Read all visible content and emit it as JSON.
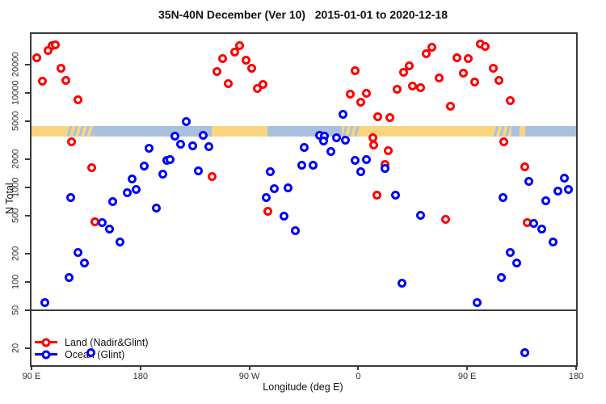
{
  "title": "35N-40N December (Ver 10)   2015-01-01 to 2020-12-18",
  "legend": {
    "land_label": "Land (Nadir&Glint)",
    "ocean_label": "Ocean (Glint)"
  },
  "colors": {
    "land_series": "#ff0000",
    "ocean_series": "#0000ff",
    "band_land": "#fbd57e",
    "band_ocean": "#a9c1df",
    "axis": "#3a3a3a"
  },
  "chart_data": {
    "type": "scatter",
    "title": "35N-40N December (Ver 10)   2015-01-01 to 2020-12-18",
    "xlabel": "Longitude (deg E)",
    "ylabel": "N Total",
    "grid": false,
    "legend_position": "bottom-left-inside",
    "x_axis": {
      "min": 90,
      "max": 540,
      "note": "longitude wraps: 90E..180..90W..0..90E..180",
      "ticks": [
        {
          "lon": 90,
          "label": "90 E"
        },
        {
          "lon": 180,
          "label": "180"
        },
        {
          "lon": 270,
          "label": "90 W"
        },
        {
          "lon": 360,
          "label": "0"
        },
        {
          "lon": 450,
          "label": "90 E"
        },
        {
          "lon": 540,
          "label": "180"
        }
      ]
    },
    "y_axis": {
      "scale": "log",
      "min": 13,
      "max": 42000,
      "ticks": [
        20,
        50,
        100,
        200,
        500,
        1000,
        2000,
        5000,
        10000,
        20000
      ]
    },
    "reference_line_n": 50,
    "surface_band": {
      "top_n": 4480,
      "bottom_n": 3470,
      "segments": [
        {
          "from": 90,
          "to": 118.6,
          "type": "land"
        },
        {
          "from": 118.6,
          "to": 141.3,
          "type": "coast"
        },
        {
          "from": 141.3,
          "to": 239.1,
          "type": "ocean"
        },
        {
          "from": 239.1,
          "to": 285.1,
          "type": "land"
        },
        {
          "from": 285.1,
          "to": 346.3,
          "type": "ocean"
        },
        {
          "from": 346.3,
          "to": 361.6,
          "type": "coast"
        },
        {
          "from": 361.6,
          "to": 471.4,
          "type": "land"
        },
        {
          "from": 471.4,
          "to": 486.7,
          "type": "coast"
        },
        {
          "from": 486.7,
          "to": 493.4,
          "type": "ocean"
        },
        {
          "from": 493.4,
          "to": 498.0,
          "type": "land"
        },
        {
          "from": 498.0,
          "to": 540,
          "type": "ocean"
        }
      ]
    },
    "series": [
      {
        "name": "Land (Nadir&Glint)",
        "color": "#ff0000",
        "points": [
          [
            94.5,
            23700
          ],
          [
            104,
            28500
          ],
          [
            107.3,
            31500
          ],
          [
            110,
            32200
          ],
          [
            114.4,
            18200
          ],
          [
            98.9,
            13400
          ],
          [
            118.2,
            13600
          ],
          [
            128.2,
            8460
          ],
          [
            122.8,
            3070
          ],
          [
            139.9,
            1640
          ],
          [
            142.1,
            434
          ],
          [
            239.3,
            1320
          ],
          [
            247.6,
            23300
          ],
          [
            257.6,
            27100
          ],
          [
            262,
            31500
          ],
          [
            267.5,
            22200
          ],
          [
            271.9,
            18200
          ],
          [
            243.1,
            16900
          ],
          [
            252.4,
            12600
          ],
          [
            276.4,
            11200
          ],
          [
            281.2,
            12400
          ],
          [
            285.2,
            564
          ],
          [
            357.4,
            17200
          ],
          [
            397.3,
            16500
          ],
          [
            401.8,
            19300
          ],
          [
            416.2,
            26100
          ],
          [
            420.7,
            30500
          ],
          [
            426.9,
            14400
          ],
          [
            391.8,
            11000
          ],
          [
            405.1,
            11900
          ],
          [
            411.8,
            11500
          ],
          [
            353.6,
            9750
          ],
          [
            366.9,
            10000
          ],
          [
            361.8,
            8000
          ],
          [
            375.8,
            5600
          ],
          [
            386.2,
            5500
          ],
          [
            371.8,
            3380
          ],
          [
            372.5,
            2810
          ],
          [
            385.1,
            2480
          ],
          [
            381.8,
            1750
          ],
          [
            375.1,
            830
          ],
          [
            432.2,
            462
          ],
          [
            499.5,
            430
          ],
          [
            460.6,
            33000
          ],
          [
            465,
            30900
          ],
          [
            441.7,
            23700
          ],
          [
            451,
            23400
          ],
          [
            446.8,
            16300
          ],
          [
            471.6,
            18200
          ],
          [
            456.2,
            13100
          ],
          [
            476.1,
            13600
          ],
          [
            485.4,
            8300
          ],
          [
            436.2,
            7200
          ],
          [
            480.1,
            3070
          ],
          [
            497.3,
            1670
          ]
        ]
      },
      {
        "name": "Ocean (Glint)",
        "color": "#0000ff",
        "points": [
          [
            187,
            2600
          ],
          [
            183.2,
            1700
          ],
          [
            202,
            1960
          ],
          [
            198.3,
            1380
          ],
          [
            173.2,
            1230
          ],
          [
            168.8,
            888
          ],
          [
            176.5,
            960
          ],
          [
            157,
            717
          ],
          [
            122.2,
            780
          ],
          [
            193.2,
            610
          ],
          [
            217.6,
            5030
          ],
          [
            208.7,
            3490
          ],
          [
            232,
            3540
          ],
          [
            213.2,
            2860
          ],
          [
            223.1,
            2770
          ],
          [
            236.5,
            2710
          ],
          [
            204.3,
            1990
          ],
          [
            227.6,
            1490
          ],
          [
            287.5,
            1460
          ],
          [
            290.8,
            980
          ],
          [
            301.9,
            1000
          ],
          [
            284.2,
            780
          ],
          [
            315.2,
            2680
          ],
          [
            313,
            1720
          ],
          [
            347.4,
            6020
          ],
          [
            327.8,
            3540
          ],
          [
            331.8,
            3490
          ],
          [
            331.4,
            3100
          ],
          [
            341.8,
            3380
          ],
          [
            349.2,
            3160
          ],
          [
            337.4,
            2390
          ],
          [
            322.5,
            1720
          ],
          [
            357.4,
            1960
          ],
          [
            366.9,
            2000
          ],
          [
            361.8,
            1460
          ],
          [
            381.8,
            1610
          ],
          [
            390.7,
            830
          ],
          [
            501,
            1160
          ],
          [
            530.5,
            1260
          ],
          [
            525,
            920
          ],
          [
            533.4,
            950
          ],
          [
            479.5,
            780
          ],
          [
            515,
            730
          ],
          [
            148.1,
            427
          ],
          [
            154.4,
            365
          ],
          [
            163.2,
            266
          ],
          [
            128.2,
            205
          ],
          [
            134,
            158
          ],
          [
            121.1,
            113
          ],
          [
            100.7,
            61
          ],
          [
            298.6,
            499
          ],
          [
            307.9,
            349
          ],
          [
            411.8,
            510
          ],
          [
            395.8,
            98
          ],
          [
            505,
            420
          ],
          [
            511.6,
            368
          ],
          [
            521.2,
            268
          ],
          [
            485.6,
            205
          ],
          [
            491.2,
            161
          ],
          [
            478.3,
            113
          ],
          [
            458.4,
            61
          ],
          [
            497.9,
            18
          ],
          [
            139.3,
            18
          ]
        ]
      }
    ]
  }
}
